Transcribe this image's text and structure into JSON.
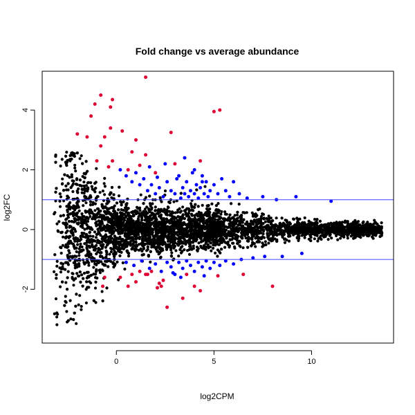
{
  "chart_data": {
    "type": "scatter",
    "title": "Fold change vs average abundance",
    "xlabel": "log2CPM",
    "ylabel": "log2FC",
    "xlim": [
      -3.8,
      14.2
    ],
    "ylim": [
      -3.8,
      5.3
    ],
    "x_ticks": [
      0,
      5,
      10
    ],
    "y_ticks": [
      -2,
      0,
      2,
      4
    ],
    "hlines": [
      1,
      -1
    ],
    "colors": {
      "not_significant": "#000000",
      "significant_abs_lfc_gt_1": "#0000FF",
      "significant_large": "#DD0033",
      "threshold_line": "#4444FF"
    },
    "series": [
      {
        "color": "#DD0033",
        "points": [
          [
            1.5,
            5.1
          ],
          [
            -0.8,
            4.5
          ],
          [
            -0.2,
            4.35
          ],
          [
            -1.1,
            4.2
          ],
          [
            -0.3,
            4.1
          ],
          [
            -1.3,
            3.8
          ],
          [
            5.3,
            4.0
          ],
          [
            5.0,
            3.95
          ],
          [
            -0.3,
            3.4
          ],
          [
            0.3,
            3.3
          ],
          [
            -1.5,
            3.1
          ],
          [
            2.8,
            3.25
          ],
          [
            -2.0,
            3.2
          ],
          [
            -0.6,
            3.1
          ],
          [
            1.0,
            3.0
          ],
          [
            -0.8,
            2.8
          ],
          [
            -1.0,
            2.3
          ],
          [
            -0.2,
            2.3
          ],
          [
            0.8,
            2.6
          ],
          [
            1.5,
            2.5
          ],
          [
            4.3,
            2.3
          ],
          [
            3.0,
            2.2
          ],
          [
            -0.4,
            2.1
          ],
          [
            0.6,
            2.0
          ],
          [
            1.2,
            2.15
          ],
          [
            2.0,
            1.9
          ],
          [
            -0.6,
            -1.6
          ],
          [
            0.2,
            -1.6
          ],
          [
            1.2,
            -1.4
          ],
          [
            1.5,
            -1.5
          ],
          [
            1.6,
            -1.5
          ],
          [
            0.8,
            -1.5
          ],
          [
            3.6,
            -1.5
          ],
          [
            5.2,
            -1.55
          ],
          [
            1.0,
            -1.75
          ],
          [
            2.2,
            -1.8
          ],
          [
            2.4,
            -1.7
          ],
          [
            2.1,
            -1.95
          ],
          [
            2.3,
            -1.9
          ],
          [
            0.6,
            -1.9
          ],
          [
            -0.7,
            -1.9
          ],
          [
            4.0,
            -1.9
          ],
          [
            4.3,
            -2.05
          ],
          [
            3.4,
            -2.3
          ],
          [
            2.6,
            -2.6
          ],
          [
            6.5,
            -1.5
          ],
          [
            8.0,
            -1.9
          ],
          [
            1.8,
            -1.4
          ]
        ]
      },
      {
        "color": "#0000FF",
        "points": [
          [
            0.2,
            2.0
          ],
          [
            0.5,
            1.8
          ],
          [
            0.8,
            1.6
          ],
          [
            1.0,
            1.9
          ],
          [
            1.2,
            1.5
          ],
          [
            1.4,
            1.7
          ],
          [
            1.6,
            1.3
          ],
          [
            1.8,
            1.5
          ],
          [
            2.0,
            1.2
          ],
          [
            2.2,
            1.4
          ],
          [
            2.4,
            1.1
          ],
          [
            2.6,
            1.6
          ],
          [
            2.8,
            1.3
          ],
          [
            3.0,
            1.2
          ],
          [
            3.2,
            1.8
          ],
          [
            3.3,
            1.05
          ],
          [
            3.4,
            1.4
          ],
          [
            3.5,
            1.2
          ],
          [
            3.6,
            1.6
          ],
          [
            3.7,
            1.1
          ],
          [
            3.8,
            1.3
          ],
          [
            3.9,
            1.9
          ],
          [
            4.0,
            1.2
          ],
          [
            4.1,
            1.5
          ],
          [
            4.2,
            1.05
          ],
          [
            4.3,
            1.4
          ],
          [
            4.4,
            1.8
          ],
          [
            4.5,
            1.2
          ],
          [
            4.6,
            1.6
          ],
          [
            4.7,
            1.1
          ],
          [
            4.8,
            1.3
          ],
          [
            5.0,
            1.5
          ],
          [
            5.2,
            1.2
          ],
          [
            5.4,
            1.7
          ],
          [
            5.6,
            1.3
          ],
          [
            5.8,
            1.1
          ],
          [
            6.0,
            1.6
          ],
          [
            6.3,
            1.2
          ],
          [
            6.7,
            1.05
          ],
          [
            7.5,
            1.1
          ],
          [
            8.2,
            1.0
          ],
          [
            9.2,
            1.1
          ],
          [
            11.0,
            0.95
          ],
          [
            2.5,
            2.2
          ],
          [
            3.5,
            2.4
          ],
          [
            4.0,
            2.0
          ],
          [
            1.7,
            2.1
          ],
          [
            3.1,
            1.7
          ],
          [
            2.1,
            1.75
          ],
          [
            4.4,
            1.6
          ],
          [
            0.5,
            -1.1
          ],
          [
            0.9,
            -1.2
          ],
          [
            1.3,
            -1.05
          ],
          [
            1.7,
            -1.3
          ],
          [
            2.0,
            -1.15
          ],
          [
            2.3,
            -1.4
          ],
          [
            2.6,
            -1.1
          ],
          [
            2.8,
            -1.25
          ],
          [
            3.0,
            -1.5
          ],
          [
            3.2,
            -1.1
          ],
          [
            3.4,
            -1.3
          ],
          [
            3.6,
            -1.05
          ],
          [
            3.8,
            -1.2
          ],
          [
            4.0,
            -1.4
          ],
          [
            4.2,
            -1.1
          ],
          [
            4.4,
            -1.25
          ],
          [
            4.6,
            -1.05
          ],
          [
            4.8,
            -1.3
          ],
          [
            5.0,
            -1.1
          ],
          [
            5.3,
            -1.2
          ],
          [
            5.6,
            -1.05
          ],
          [
            6.0,
            -1.15
          ],
          [
            6.4,
            -1.0
          ],
          [
            7.0,
            -0.95
          ],
          [
            7.6,
            -0.9
          ],
          [
            8.5,
            -0.9
          ],
          [
            9.5,
            -0.8
          ],
          [
            3.3,
            -1.6
          ],
          [
            4.5,
            -1.55
          ],
          [
            2.9,
            -1.45
          ]
        ]
      }
    ],
    "background_cloud": {
      "color": "#000000",
      "x_range": [
        -3.2,
        13.6
      ],
      "y_center": 0.0,
      "y_spread_description": "dense cloud, widest at low log2CPM (about -3 to +2.5), narrowing to about ±0.5 above log2CPM 10"
    }
  }
}
